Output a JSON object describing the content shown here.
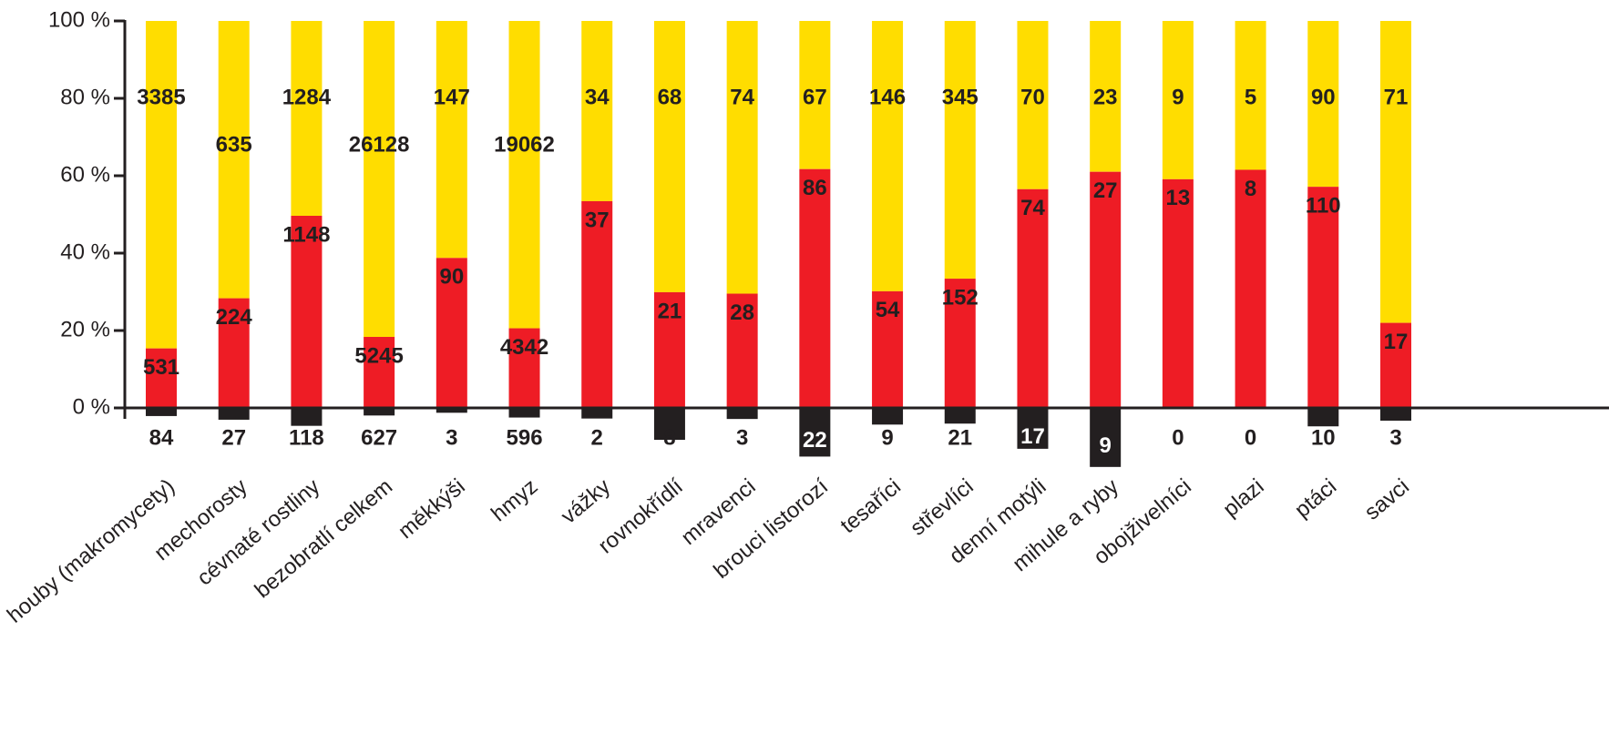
{
  "chart_data": {
    "type": "stacked-percent-bar",
    "categories": [
      "houby (makromycety)",
      "mechorosty",
      "cévnaté rostliny",
      "bezobratlí celkem",
      "měkkýši",
      "hmyz",
      "vážky",
      "rovnokřídlí",
      "mravenci",
      "brouci listorozí",
      "tesaříci",
      "střevlíci",
      "denní motýli",
      "mihule a ryby",
      "obojživelníci",
      "plazi",
      "ptáci",
      "savci"
    ],
    "series": [
      {
        "color": "#ffdd00",
        "values": [
          3385,
          635,
          1284,
          26128,
          147,
          19062,
          34,
          68,
          74,
          67,
          146,
          345,
          70,
          23,
          9,
          5,
          90,
          71
        ]
      },
      {
        "color": "#ee1c25",
        "values": [
          531,
          224,
          1148,
          5245,
          90,
          4342,
          37,
          21,
          28,
          86,
          54,
          152,
          74,
          27,
          13,
          8,
          110,
          17
        ]
      },
      {
        "color": "#231f20",
        "values": [
          84,
          27,
          118,
          627,
          3,
          596,
          2,
          8,
          3,
          22,
          9,
          21,
          17,
          9,
          0,
          0,
          10,
          3
        ]
      }
    ],
    "ylim": [
      0,
      100
    ],
    "yticks": [
      {
        "value": 0,
        "label": "0 %"
      },
      {
        "value": 20,
        "label": "20 %"
      },
      {
        "value": 40,
        "label": "40 %"
      },
      {
        "value": 60,
        "label": "60 %"
      },
      {
        "value": 80,
        "label": "80 %"
      },
      {
        "value": 100,
        "label": "100 %"
      }
    ]
  }
}
